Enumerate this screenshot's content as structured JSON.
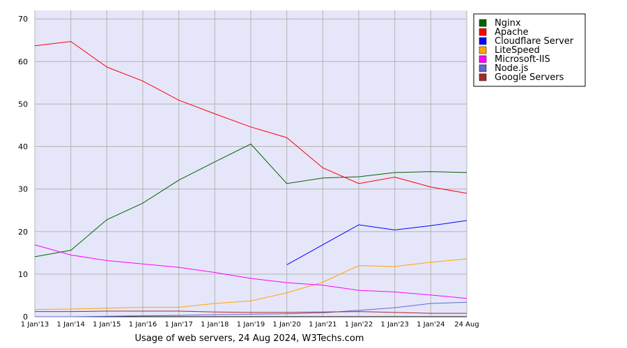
{
  "chart_data": {
    "type": "line",
    "title": "Usage of web servers, 24 Aug 2024, W3Techs.com",
    "categories": [
      "1 Jan'13",
      "1 Jan'14",
      "1 Jan'15",
      "1 Jan'16",
      "1 Jan'17",
      "1 Jan'18",
      "1 Jan'19",
      "1 Jan'20",
      "1 Jan'21",
      "1 Jan'22",
      "1 Jan'23",
      "1 Jan'24",
      "24 Aug"
    ],
    "series": [
      {
        "name": "Nginx",
        "color": "#006400",
        "values": [
          14.1,
          15.6,
          22.8,
          26.7,
          32.1,
          36.4,
          40.6,
          31.3,
          32.6,
          32.9,
          33.9,
          34.1,
          33.9
        ]
      },
      {
        "name": "Apache",
        "color": "#ff0000",
        "values": [
          63.7,
          64.7,
          58.7,
          55.4,
          50.9,
          47.7,
          44.6,
          42.1,
          35.0,
          31.3,
          32.8,
          30.5,
          29.0
        ]
      },
      {
        "name": "Cloudflare Server",
        "color": "#0000ff",
        "values": [
          null,
          null,
          null,
          null,
          null,
          null,
          null,
          12.2,
          16.9,
          21.6,
          20.4,
          21.4,
          22.6
        ]
      },
      {
        "name": "LiteSpeed",
        "color": "#ffa500",
        "values": [
          1.7,
          1.8,
          2.0,
          2.2,
          2.2,
          3.1,
          3.7,
          5.6,
          8.1,
          12.0,
          11.8,
          12.8,
          13.6
        ]
      },
      {
        "name": "Microsoft-IIS",
        "color": "#ff00ff",
        "values": [
          16.9,
          14.5,
          13.2,
          12.4,
          11.6,
          10.4,
          9.0,
          8.0,
          7.4,
          6.2,
          5.8,
          5.1,
          4.3
        ]
      },
      {
        "name": "Node.js",
        "color": "#6666cc",
        "values": [
          0,
          0,
          0.1,
          0.2,
          0.3,
          0.5,
          0.6,
          0.7,
          0.9,
          1.5,
          2.1,
          3.1,
          3.4
        ]
      },
      {
        "name": "Google Servers",
        "color": "#a52a2a",
        "values": [
          1.2,
          1.2,
          1.3,
          1.3,
          1.3,
          1.1,
          1.0,
          1.0,
          1.1,
          1.2,
          1.0,
          0.8,
          0.8
        ]
      }
    ],
    "ylim": [
      0,
      72
    ],
    "yticks": [
      0,
      10,
      20,
      30,
      40,
      50,
      60,
      70
    ],
    "grid": true,
    "legend": "top-right"
  }
}
